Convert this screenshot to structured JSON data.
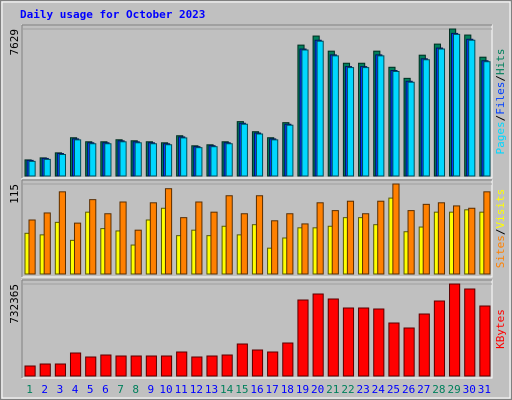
{
  "title": "Daily usage for October 2023",
  "days": [
    1,
    2,
    3,
    4,
    5,
    6,
    7,
    8,
    9,
    10,
    11,
    12,
    13,
    14,
    15,
    16,
    17,
    18,
    19,
    20,
    21,
    22,
    23,
    24,
    25,
    26,
    27,
    28,
    29,
    30,
    31
  ],
  "highlight_days": [
    1,
    7,
    8,
    14,
    15,
    21,
    22,
    28,
    29
  ],
  "highlight_color": "#00805c",
  "legend_separator": "/",
  "chart_data": [
    {
      "type": "bar",
      "ylim": [
        0,
        7629
      ],
      "yticks": [
        7629
      ],
      "series": [
        {
          "name": "Hits",
          "color": "#00805c",
          "values": [
            836,
            941,
            1202,
            1986,
            1777,
            1777,
            1881,
            1829,
            1777,
            1724,
            2090,
            1568,
            1620,
            1777,
            2822,
            2299,
            1986,
            2769,
            6793,
            7263,
            6479,
            5852,
            5852,
            6479,
            5643,
            5068,
            6270,
            6845,
            7629,
            7315,
            6166
          ]
        },
        {
          "name": "Files",
          "color": "#0040ff",
          "values": [
            810,
            912,
            1166,
            1926,
            1724,
            1724,
            1825,
            1774,
            1724,
            1672,
            2027,
            1521,
            1571,
            1724,
            2737,
            2230,
            1926,
            2686,
            6589,
            7045,
            6285,
            5676,
            5676,
            6285,
            5474,
            4916,
            6082,
            6640,
            7400,
            7096,
            5981
          ]
        },
        {
          "name": "Pages",
          "color": "#00d8ff",
          "values": [
            760,
            862,
            1116,
            1876,
            1674,
            1674,
            1775,
            1724,
            1674,
            1622,
            1977,
            1471,
            1521,
            1674,
            2687,
            2180,
            1876,
            2636,
            6539,
            6995,
            6235,
            5626,
            5626,
            6235,
            5424,
            4866,
            6032,
            6590,
            7350,
            7046,
            5931
          ]
        }
      ]
    },
    {
      "type": "bar",
      "ylim": [
        0,
        115
      ],
      "yticks": [
        115
      ],
      "series": [
        {
          "name": "Visits",
          "color": "#ffff00",
          "values": [
            52,
            50,
            66,
            43,
            79,
            58,
            55,
            37,
            69,
            84,
            49,
            56,
            49,
            61,
            50,
            63,
            33,
            46,
            59,
            59,
            61,
            72,
            72,
            63,
            97,
            54,
            60,
            79,
            79,
            82,
            79
          ]
        },
        {
          "name": "Sites",
          "color": "#ff8000",
          "values": [
            69,
            78,
            105,
            65,
            95,
            77,
            92,
            56,
            91,
            109,
            72,
            92,
            79,
            100,
            77,
            100,
            68,
            77,
            64,
            91,
            81,
            93,
            77,
            93,
            115,
            81,
            89,
            91,
            87,
            84,
            105
          ]
        }
      ]
    },
    {
      "type": "bar",
      "ylim": [
        0,
        732365
      ],
      "yticks": [
        732365
      ],
      "series": [
        {
          "name": "KBytes",
          "color": "#ff0000",
          "values": [
            79600,
            95520,
            95520,
            183080,
            151240,
            167160,
            159200,
            159200,
            159200,
            159200,
            191040,
            151240,
            159200,
            167160,
            254720,
            206960,
            191040,
            262680,
            604960,
            652720,
            612920,
            541280,
            541280,
            533320,
            421880,
            382080,
            493520,
            597000,
            732365,
            692520,
            557200
          ]
        }
      ]
    }
  ]
}
